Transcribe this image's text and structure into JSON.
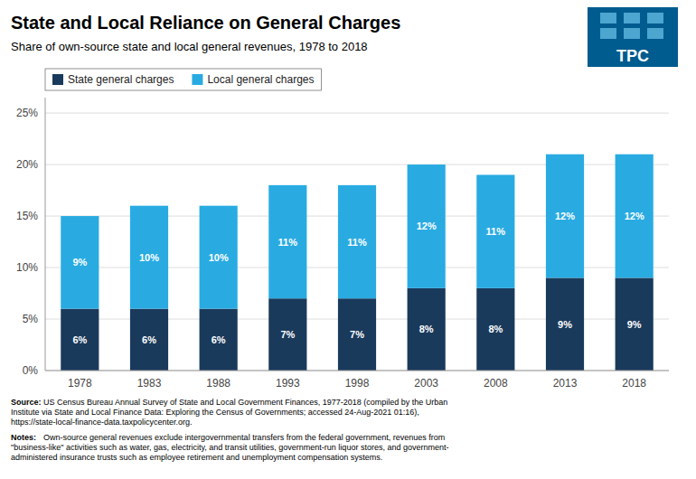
{
  "chart_data": {
    "type": "bar",
    "stacked": true,
    "title": "State and Local Reliance on General Charges",
    "subtitle": "Share of own-source state and local general revenues, 1978 to 2018",
    "categories": [
      "1978",
      "1983",
      "1988",
      "1993",
      "1998",
      "2003",
      "2008",
      "2013",
      "2018"
    ],
    "series": [
      {
        "name": "State general charges",
        "color": "#1a3a5c",
        "values": [
          0.06,
          0.06,
          0.06,
          0.07,
          0.07,
          0.08,
          0.08,
          0.09,
          0.09
        ],
        "value_labels": [
          "6%",
          "6%",
          "6%",
          "7%",
          "7%",
          "8%",
          "8%",
          "9%",
          "9%"
        ]
      },
      {
        "name": "Local general charges",
        "color": "#29abe2",
        "values": [
          0.09,
          0.1,
          0.1,
          0.11,
          0.11,
          0.12,
          0.11,
          0.12,
          0.12
        ],
        "value_labels": [
          "9%",
          "10%",
          "10%",
          "11%",
          "11%",
          "12%",
          "11%",
          "12%",
          "12%"
        ]
      }
    ],
    "ylim": [
      0,
      0.265
    ],
    "yticks": [
      {
        "value": 0.0,
        "label": "0%"
      },
      {
        "value": 0.05,
        "label": "5%"
      },
      {
        "value": 0.1,
        "label": "10%"
      },
      {
        "value": 0.15,
        "label": "15%"
      },
      {
        "value": 0.2,
        "label": "20%"
      },
      {
        "value": 0.25,
        "label": "25%"
      }
    ],
    "grid": true,
    "legend": "upper left",
    "data_labels": true,
    "annotations": [
      "Source:",
      " US Census Bureau Annual Survey of State and Local Government Finances, 1977-2018  (compiled by the Urban\nInstitute via State and Local Finance Data: Exploring the Census of Governments; accessed 24-Aug-2021  01:16),\nhttps://state-local-finance-data.taxpolicycenter.org.",
      "Notes:",
      " Own-source general revenues exclude intergovernmental transfers from the federal government, revenues from\n\"business-like\" activities such as water, gas, electricity, and transit utilities, government-run liquor stores, and government-\nadministered insurance trusts such as employee retirement and unemployment compensation systems.",
      "TPC"
    ]
  }
}
